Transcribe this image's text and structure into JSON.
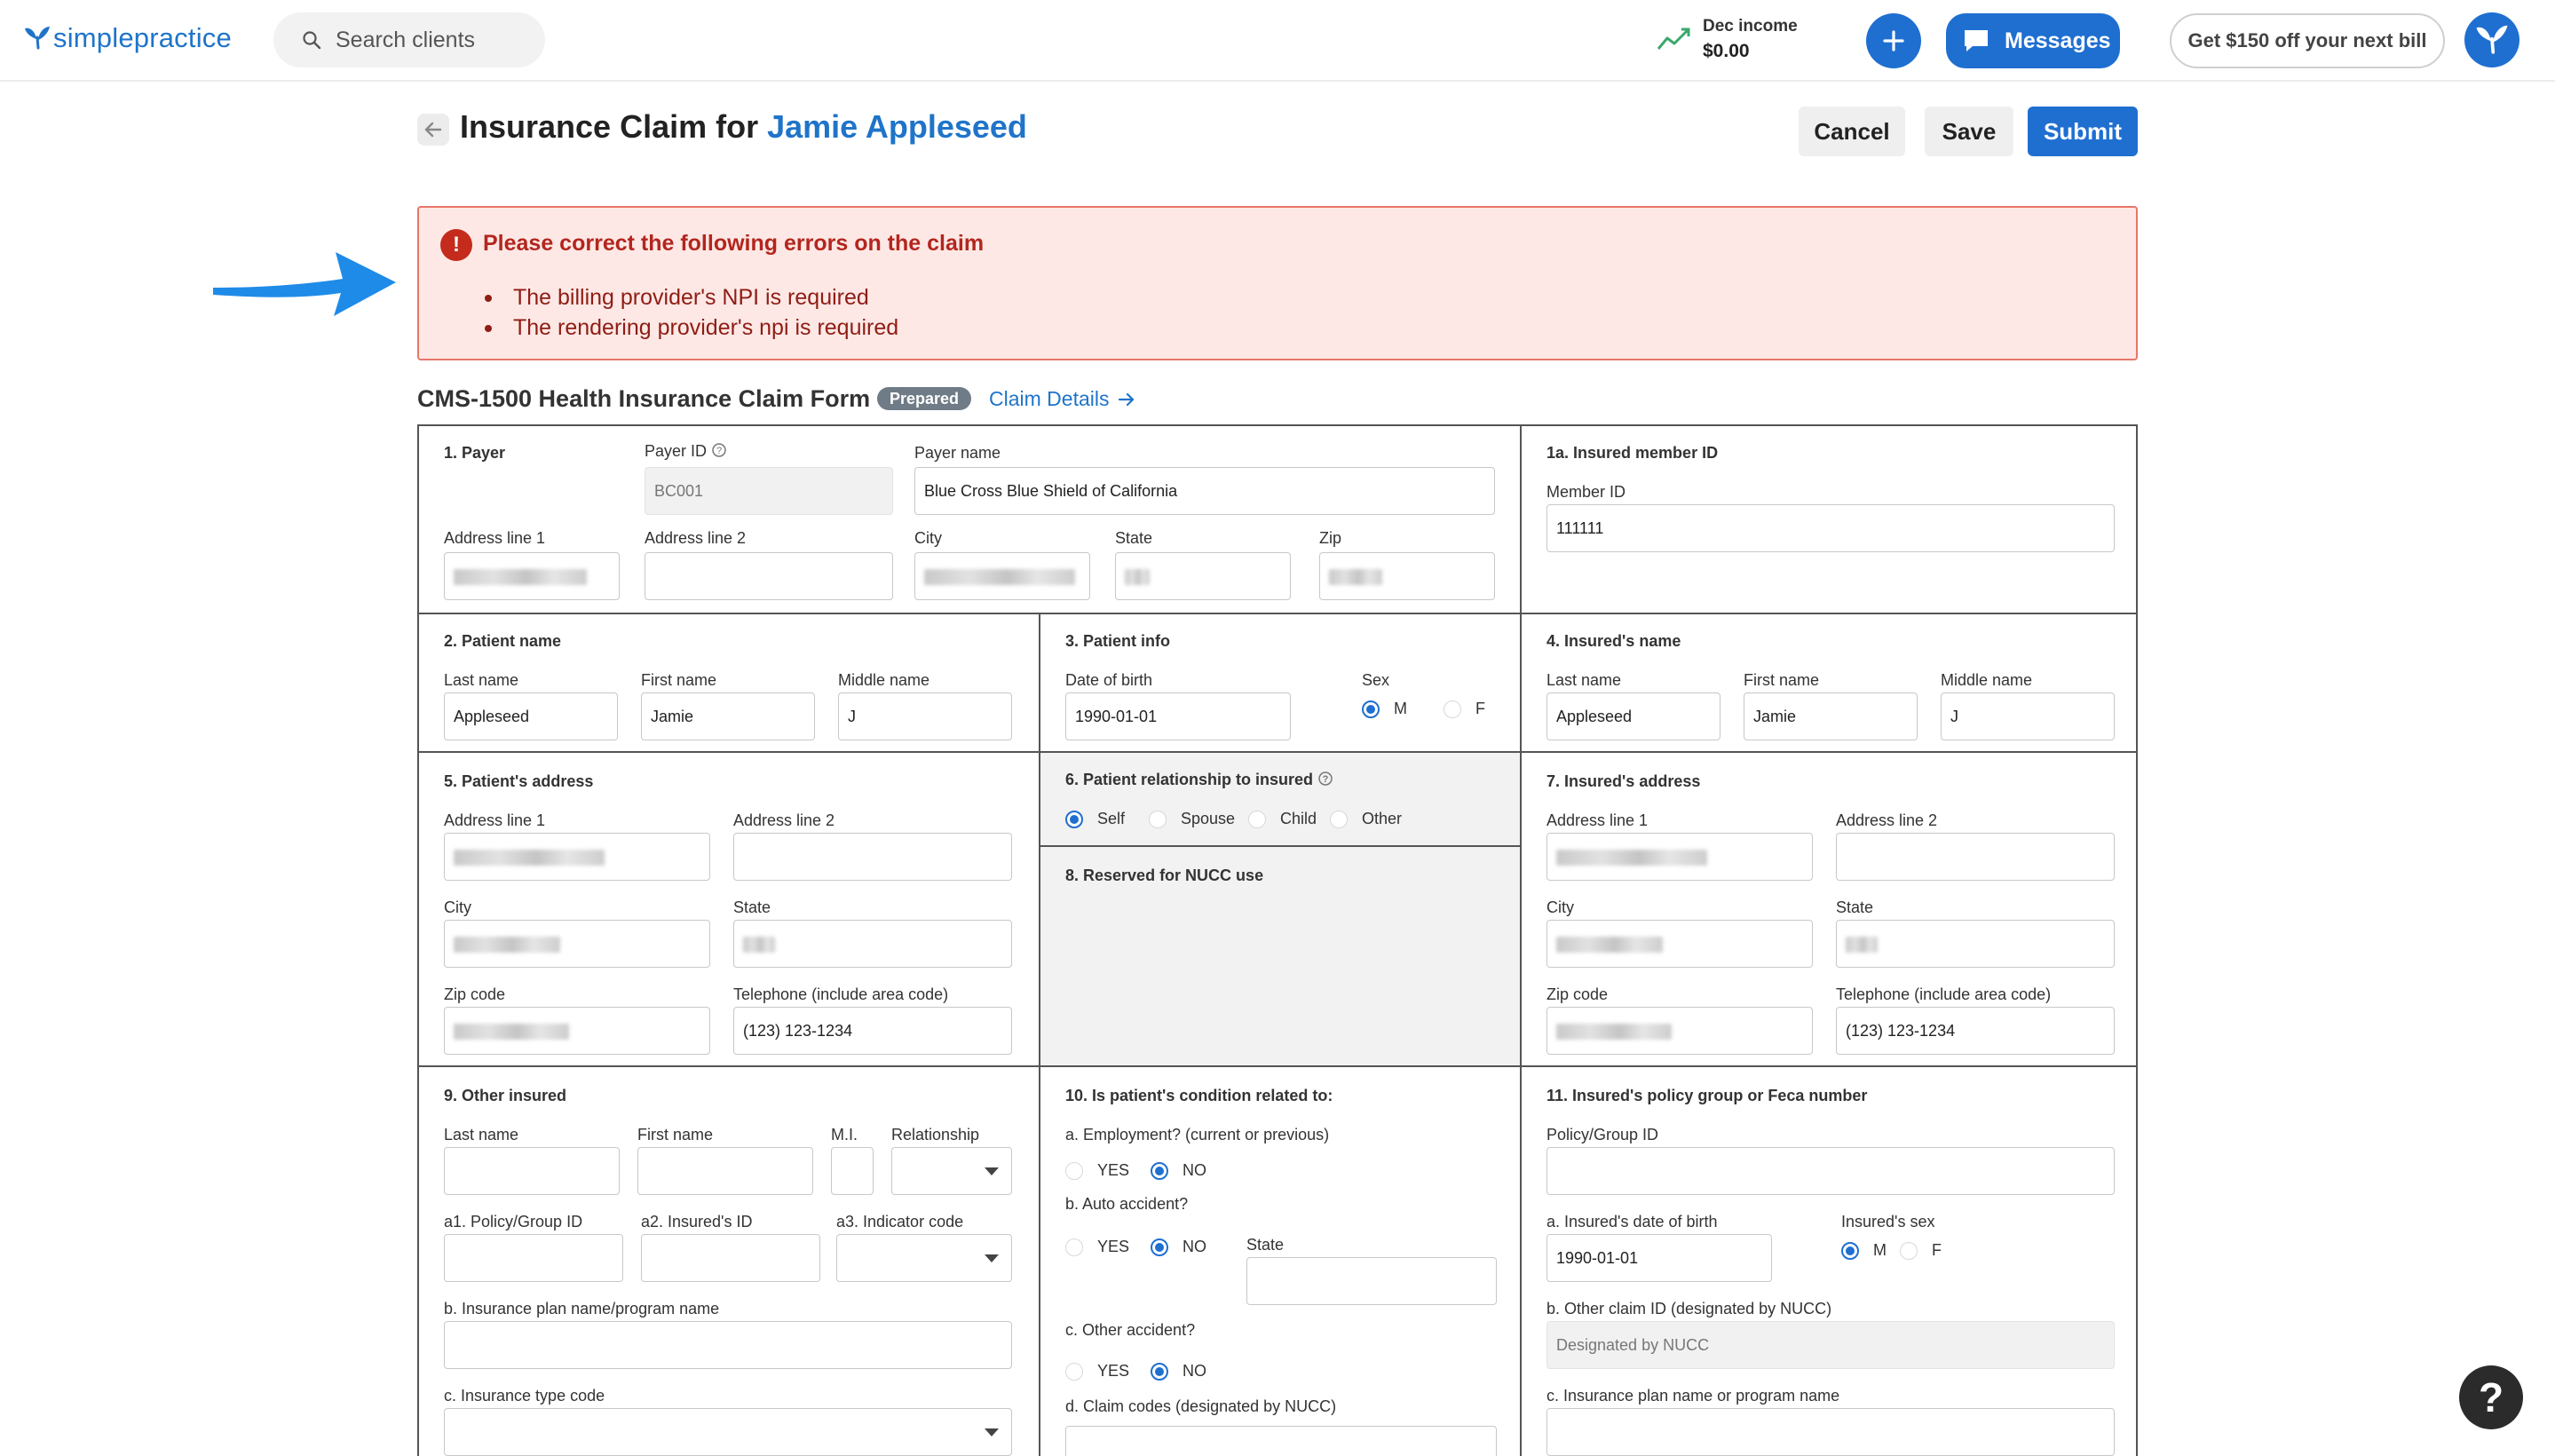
{
  "brand": {
    "logo_text": "simplepractice",
    "color": "#1f74c9"
  },
  "topbar": {
    "search_placeholder": "Search clients",
    "income_label": "Dec income",
    "income_value": "$0.00",
    "messages_label": "Messages",
    "promo_label": "Get $150 off your next bill",
    "accent": "#1f6fd1"
  },
  "header": {
    "title_prefix": "Insurance Claim for ",
    "client_name": "Jamie Appleseed",
    "cancel": "Cancel",
    "save": "Save",
    "submit": "Submit"
  },
  "errors": {
    "icon": "!",
    "title": "Please correct the following errors on the claim",
    "items": [
      "The billing provider's NPI is required",
      "The rendering provider's npi is required"
    ]
  },
  "form_header": {
    "title": "CMS-1500 Health Insurance Claim Form",
    "badge": "Prepared",
    "link": "Claim Details"
  },
  "form": {
    "s1": {
      "title": "1. Payer",
      "payer_id_label": "Payer ID",
      "payer_id_value": "BC001",
      "payer_name_label": "Payer name",
      "payer_name_value": "Blue Cross Blue Shield of California",
      "addr1_label": "Address line 1",
      "addr2_label": "Address line 2",
      "city_label": "City",
      "state_label": "State",
      "zip_label": "Zip"
    },
    "s1a": {
      "title": "1a. Insured member ID",
      "member_id_label": "Member ID",
      "member_id_value": "111111"
    },
    "s2": {
      "title": "2. Patient name",
      "last_label": "Last name",
      "last_value": "Appleseed",
      "first_label": "First name",
      "first_value": "Jamie",
      "middle_label": "Middle name",
      "middle_value": "J"
    },
    "s3": {
      "title": "3. Patient info",
      "dob_label": "Date of birth",
      "dob_value": "1990-01-01",
      "sex_label": "Sex",
      "sex_m": "M",
      "sex_f": "F"
    },
    "s4": {
      "title": "4. Insured's name",
      "last_label": "Last name",
      "last_value": "Appleseed",
      "first_label": "First name",
      "first_value": "Jamie",
      "middle_label": "Middle name",
      "middle_value": "J"
    },
    "s5": {
      "title": "5. Patient's address",
      "addr1_label": "Address line 1",
      "addr2_label": "Address line 2",
      "city_label": "City",
      "state_label": "State",
      "zip_label": "Zip code",
      "phone_label": "Telephone (include area code)",
      "phone_value": "(123) 123-1234"
    },
    "s6": {
      "title": "6. Patient relationship to insured",
      "opts": [
        "Self",
        "Spouse",
        "Child",
        "Other"
      ]
    },
    "s7": {
      "title": "7. Insured's address",
      "addr1_label": "Address line 1",
      "addr2_label": "Address line 2",
      "city_label": "City",
      "state_label": "State",
      "zip_label": "Zip code",
      "phone_label": "Telephone (include area code)",
      "phone_value": "(123) 123-1234"
    },
    "s8": {
      "title": "8. Reserved for NUCC use"
    },
    "s9": {
      "title": "9. Other insured",
      "last_label": "Last name",
      "first_label": "First name",
      "mi_label": "M.I.",
      "rel_label": "Relationship",
      "a1_label": "a1. Policy/Group ID",
      "a2_label": "a2. Insured's ID",
      "a3_label": "a3. Indicator code",
      "b_label": "b. Insurance plan name/program name",
      "c_label": "c. Insurance type code"
    },
    "s10": {
      "title": "10. Is patient's condition related to:",
      "a_label": "a. Employment? (current or previous)",
      "b_label": "b. Auto accident?",
      "state_label": "State",
      "c_label": "c. Other accident?",
      "d_label": "d. Claim codes (designated by NUCC)",
      "yes": "YES",
      "no": "NO"
    },
    "s11": {
      "title": "11. Insured's policy group or Feca number",
      "policy_label": "Policy/Group ID",
      "dob_label": "a. Insured's date of birth",
      "dob_value": "1990-01-01",
      "sex_label": "Insured's sex",
      "sex_m": "M",
      "sex_f": "F",
      "b_label": "b. Other claim ID (designated by NUCC)",
      "b_placeholder": "Designated by NUCC",
      "c_label": "c. Insurance plan name or program name"
    }
  },
  "help": {
    "label": "?"
  }
}
